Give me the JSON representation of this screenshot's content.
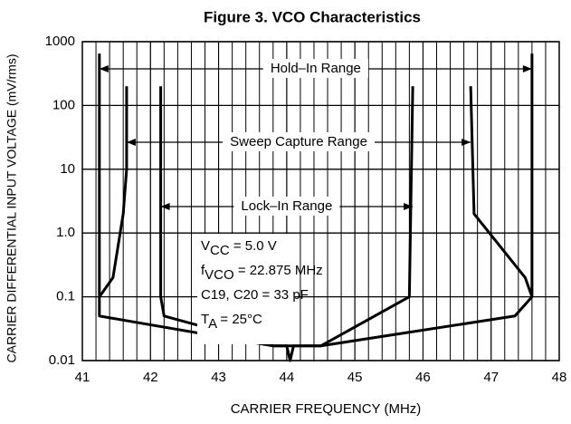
{
  "chart_data": {
    "type": "line",
    "title": "Figure 3. VCO Characteristics",
    "xlabel": "CARRIER FREQUENCY (MHz)",
    "ylabel": "CARRIER DIFFERENTIAL INPUT VOLTAGE (mV/rms)",
    "xlim": [
      41,
      48
    ],
    "xticks": [
      41,
      42,
      43,
      44,
      45,
      46,
      47,
      48
    ],
    "x_minor_grid": 0.2,
    "ylim": [
      0.01,
      1000
    ],
    "yscale": "log",
    "yticks": [
      1000,
      100,
      10,
      {
        "value": 1,
        "label": "1.0"
      },
      0.1,
      0.01
    ],
    "grid": true,
    "series": [
      {
        "name": "Hold–In Range",
        "color": "#000000",
        "x": [
          41.25,
          41.25,
          43.8,
          44.0,
          44.05,
          44.1,
          44.5,
          47.35,
          47.6,
          47.6
        ],
        "values": [
          650,
          0.05,
          0.017,
          0.017,
          0.01,
          0.017,
          0.017,
          0.05,
          0.1,
          650
        ]
      },
      {
        "name": "Sweep Capture Range",
        "color": "#000000",
        "x": [
          41.25,
          41.45,
          41.6,
          41.65,
          41.65,
          null,
          46.7,
          46.75,
          47.5,
          47.6
        ],
        "values": [
          0.1,
          0.2,
          2,
          10,
          200,
          null,
          200,
          2,
          0.2,
          0.1
        ]
      },
      {
        "name": "Lock–In Range",
        "color": "#000000",
        "x": [
          42.15,
          42.15,
          42.2,
          43.8,
          44.5,
          45.8,
          45.85
        ],
        "values": [
          200,
          0.1,
          0.05,
          0.017,
          0.017,
          0.1,
          200
        ]
      }
    ],
    "conditions": [
      [
        "V",
        "CC",
        " = 5.0 V"
      ],
      [
        "f",
        "VCO",
        " = 22.875 MHz"
      ],
      [
        "C19, C20 = 33 pF"
      ],
      [
        "T",
        "A",
        " = 25°C"
      ]
    ]
  }
}
